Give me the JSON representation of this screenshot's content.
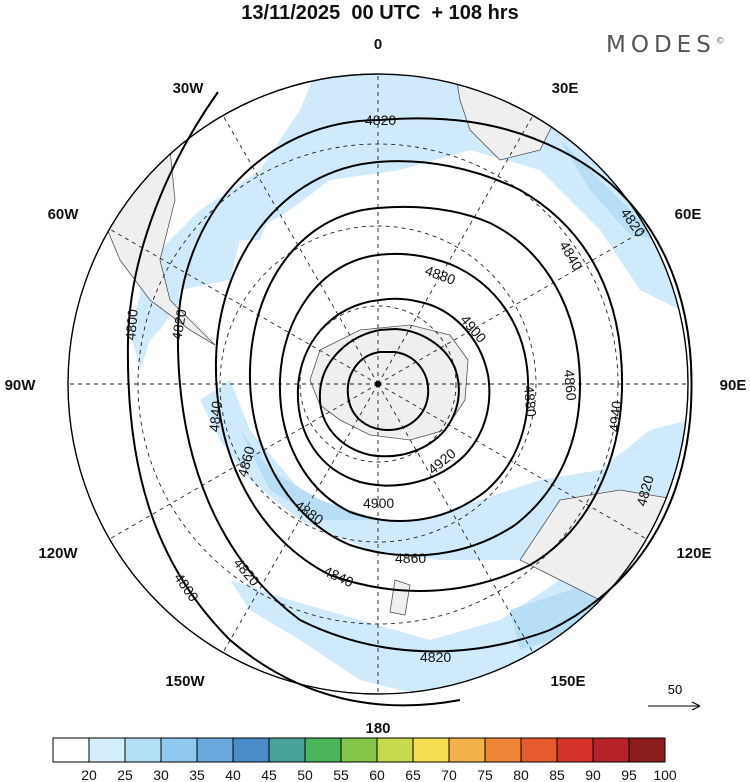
{
  "header": {
    "title": "13/11/2025  00 UTC  + 108 hrs",
    "brand": "MODES",
    "brand_mark": "©"
  },
  "map": {
    "projection": "south-polar-stereographic",
    "longitude_labels": [
      {
        "lon": 0,
        "text": "0"
      },
      {
        "lon": 30,
        "text": "30E"
      },
      {
        "lon": 60,
        "text": "60E"
      },
      {
        "lon": 90,
        "text": "90E"
      },
      {
        "lon": 120,
        "text": "120E"
      },
      {
        "lon": 150,
        "text": "150E"
      },
      {
        "lon": 180,
        "text": "180"
      },
      {
        "lon": -150,
        "text": "150W"
      },
      {
        "lon": -120,
        "text": "120W"
      },
      {
        "lon": -90,
        "text": "90W"
      },
      {
        "lon": -60,
        "text": "60W"
      },
      {
        "lon": -30,
        "text": "30W"
      }
    ],
    "contour_labels": [
      {
        "text": "4820"
      },
      {
        "text": "4820"
      },
      {
        "text": "4820"
      },
      {
        "text": "4820"
      },
      {
        "text": "4820"
      },
      {
        "text": "4820"
      },
      {
        "text": "4800"
      },
      {
        "text": "4800"
      },
      {
        "text": "4840"
      },
      {
        "text": "4840"
      },
      {
        "text": "4840"
      },
      {
        "text": "4860"
      },
      {
        "text": "4860"
      },
      {
        "text": "4860"
      },
      {
        "text": "4880"
      },
      {
        "text": "4880"
      },
      {
        "text": "4880"
      },
      {
        "text": "4900"
      },
      {
        "text": "4900"
      },
      {
        "text": "4920"
      },
      {
        "text": "4940"
      }
    ],
    "wind_reference": {
      "value": "50"
    }
  },
  "colorbar": {
    "ticks": [
      "20",
      "25",
      "30",
      "35",
      "40",
      "45",
      "50",
      "55",
      "60",
      "65",
      "70",
      "75",
      "80",
      "85",
      "90",
      "95",
      "100"
    ],
    "colors": [
      "#ffffff",
      "#d4eefc",
      "#b3dff6",
      "#8ec8ee",
      "#6aa9de",
      "#4a8cc8",
      "#4aa39a",
      "#4bb55a",
      "#86c64a",
      "#c7da4d",
      "#f6de52",
      "#f3b14a",
      "#ef8536",
      "#e75a2e",
      "#d6332a",
      "#b72228",
      "#8c1d1d"
    ]
  }
}
